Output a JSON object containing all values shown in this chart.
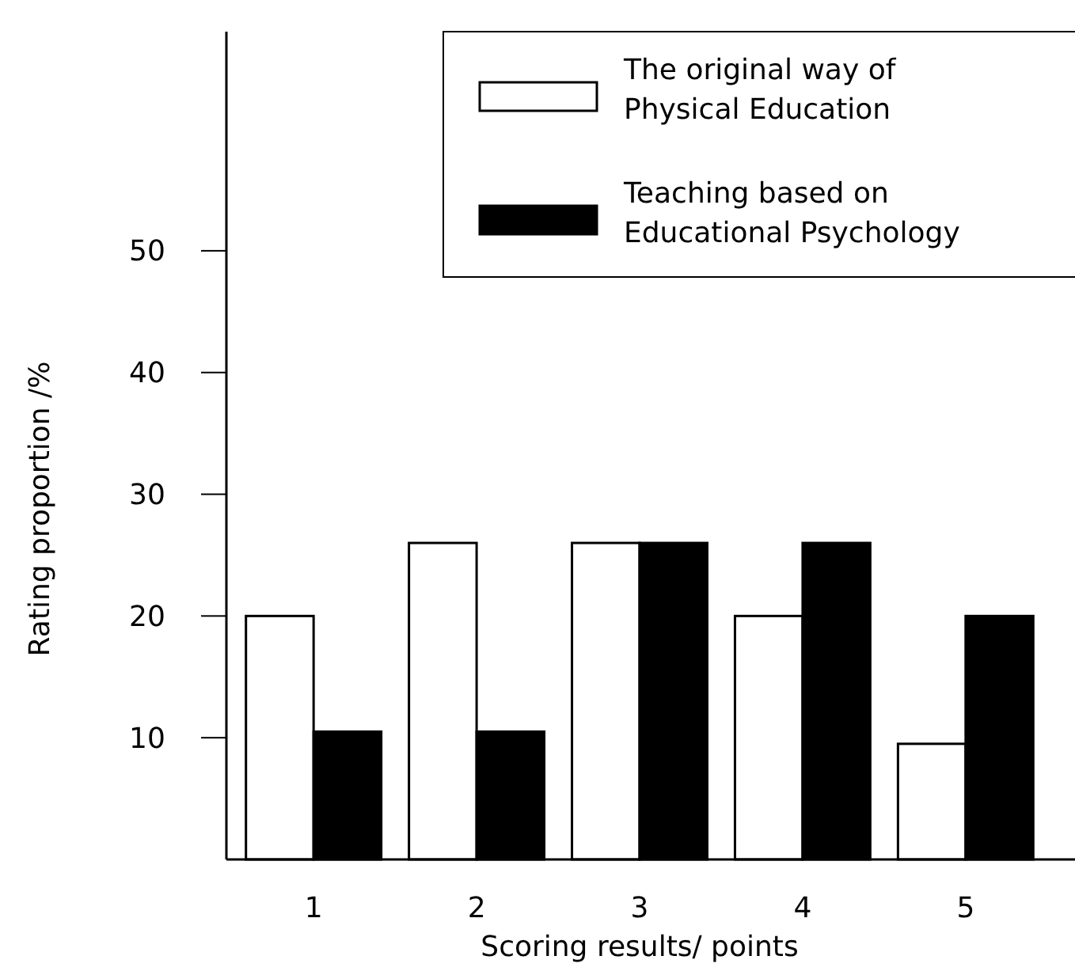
{
  "chart_data": {
    "type": "bar",
    "xlabel": "Scoring results/ points",
    "ylabel": "Rating proportion /%",
    "categories": [
      "1",
      "2",
      "3",
      "4",
      "5"
    ],
    "series": [
      {
        "name": "The original way of Physical Education",
        "color": "#ffffff",
        "values": [
          20,
          26,
          26,
          20,
          9.5
        ]
      },
      {
        "name": "Teaching based on Educational Psychology",
        "color": "#000000",
        "values": [
          10.5,
          10.5,
          26,
          26,
          20
        ]
      }
    ],
    "ylim": [
      0,
      68
    ],
    "yticks": [
      10,
      20,
      30,
      40,
      50
    ],
    "grid": false,
    "legend": "top right"
  }
}
